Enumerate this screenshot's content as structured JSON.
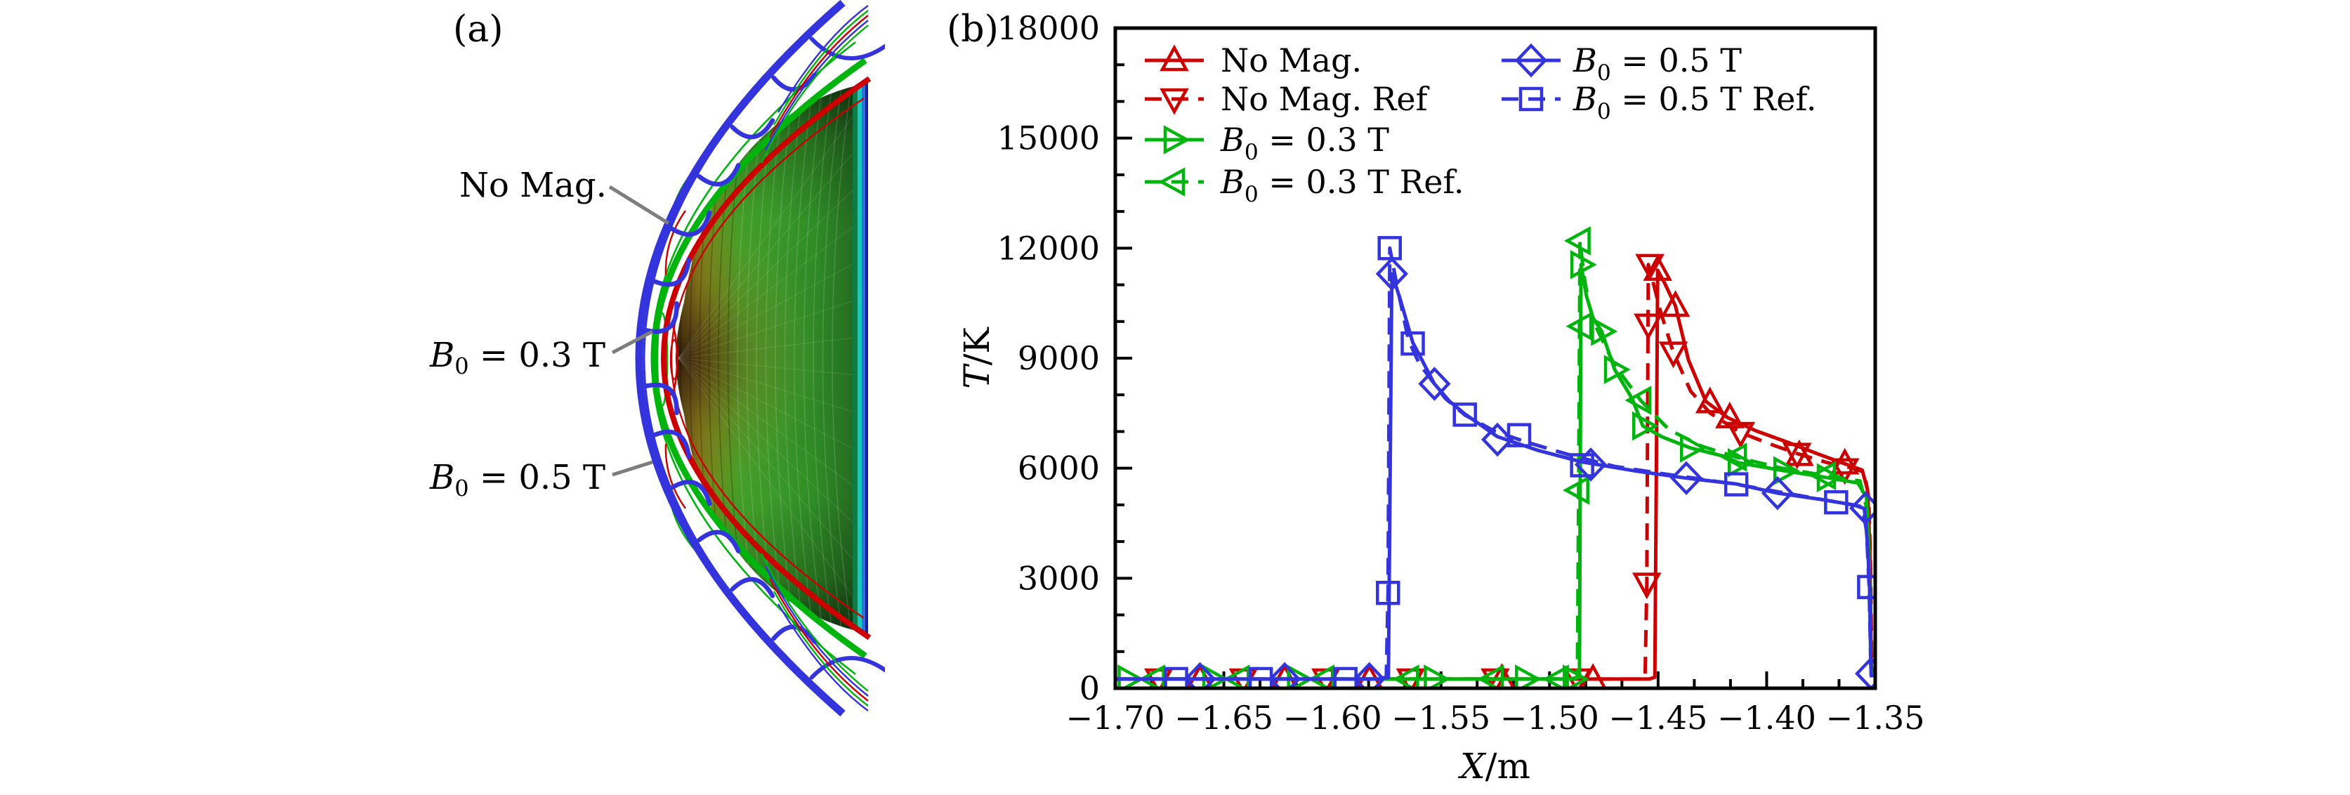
{
  "panel_a": {
    "label": "(a)",
    "annotations": [
      {
        "var": "",
        "sub": "",
        "rest": "No Mag.",
        "target": "red-shock-front"
      },
      {
        "var": "B",
        "sub": "0",
        "rest": " = 0.3 T",
        "target": "green-shock-front"
      },
      {
        "var": "B",
        "sub": "0",
        "rest": " = 0.5 T",
        "target": "blue-shock-front"
      }
    ],
    "colors": {
      "no_mag_shock": "#cc0000",
      "b03_shock": "#00b40e",
      "b05_shock": "#3434dd",
      "leader_line": "#7d7d7d",
      "body_nose": "#33230a",
      "body_mid": "#3a9a2a",
      "body_edge": "#1e6020",
      "base_teal": "#18c9c2",
      "base_blue": "#2f6fe0",
      "base_deep_blue": "#15249c"
    }
  },
  "panel_b": {
    "label": "(b)",
    "x_axis": {
      "label_var": "X",
      "label_rest": "/m",
      "tick_labels": [
        "−1.70",
        "−1.65",
        "−1.60",
        "−1.55",
        "−1.50",
        "−1.45",
        "−1.40",
        "−1.35"
      ]
    },
    "y_axis": {
      "label_var": "T",
      "label_rest": "/K",
      "tick_labels": [
        "0",
        "3000",
        "6000",
        "9000",
        "12000",
        "15000",
        "18000"
      ]
    },
    "legend": {
      "columns": [
        [
          {
            "var": "",
            "sub": "",
            "rest": "No Mag.",
            "color": "#cc0000",
            "dashed": false,
            "marker": "triangle-up"
          },
          {
            "var": "",
            "sub": "",
            "rest": "No Mag. Ref",
            "color": "#cc0000",
            "dashed": true,
            "marker": "triangle-down"
          },
          {
            "var": "B",
            "sub": "0",
            "rest": " = 0.3 T",
            "color": "#00b40e",
            "dashed": false,
            "marker": "triangle-right"
          },
          {
            "var": "B",
            "sub": "0",
            "rest": " = 0.3 T Ref.",
            "color": "#00b40e",
            "dashed": true,
            "marker": "triangle-left"
          }
        ],
        [
          {
            "var": "B",
            "sub": "0",
            "rest": " = 0.5 T",
            "color": "#3434dd",
            "dashed": false,
            "marker": "diamond"
          },
          {
            "var": "B",
            "sub": "0",
            "rest": " = 0.5 T Ref.",
            "color": "#3434dd",
            "dashed": true,
            "marker": "square"
          }
        ]
      ]
    }
  },
  "chart_data": {
    "type": "line",
    "title": "",
    "xlabel": "X/m",
    "ylabel": "T/K",
    "xlim": [
      -1.7,
      -1.35
    ],
    "ylim": [
      0,
      18000
    ],
    "x_major_step": 0.05,
    "x_minor_divisions": 3,
    "y_major_step": 3000,
    "y_minor_divisions": 3,
    "grid": false,
    "legend_position": "upper-left-inside",
    "series": [
      {
        "name": "No Mag. Ref",
        "color": "#cc0000",
        "style": "dashed",
        "marker": "triangle-down",
        "points": [
          [
            -1.7,
            250
          ],
          [
            -1.6,
            250
          ],
          [
            -1.5,
            250
          ],
          [
            -1.458,
            250
          ],
          [
            -1.456,
            300
          ],
          [
            -1.4552,
            2860
          ],
          [
            -1.4545,
            11550
          ],
          [
            -1.452,
            11000
          ],
          [
            -1.449,
            10300
          ],
          [
            -1.443,
            9160
          ],
          [
            -1.435,
            8100
          ],
          [
            -1.426,
            7500
          ],
          [
            -1.412,
            6970
          ],
          [
            -1.398,
            6650
          ],
          [
            -1.386,
            6400
          ],
          [
            -1.372,
            6150
          ],
          [
            -1.362,
            6020
          ],
          [
            -1.355,
            5900
          ],
          [
            -1.353,
            5200
          ],
          [
            -1.3522,
            3500
          ],
          [
            -1.3516,
            600
          ],
          [
            -1.3514,
            300
          ]
        ],
        "marker_points": [
          [
            -1.68,
            250
          ],
          [
            -1.641,
            250
          ],
          [
            -1.603,
            250
          ],
          [
            -1.564,
            250
          ],
          [
            -1.525,
            250
          ],
          [
            -1.487,
            250
          ],
          [
            -1.4552,
            2860
          ],
          [
            -1.4545,
            9925
          ],
          [
            -1.4538,
            11550
          ],
          [
            -1.443,
            9160
          ],
          [
            -1.412,
            6970
          ],
          [
            -1.386,
            6400
          ],
          [
            -1.364,
            5980
          ]
        ]
      },
      {
        "name": "No Mag.",
        "color": "#cc0000",
        "style": "solid",
        "marker": "triangle-up",
        "points": [
          [
            -1.7,
            250
          ],
          [
            -1.6,
            250
          ],
          [
            -1.5,
            250
          ],
          [
            -1.454,
            250
          ],
          [
            -1.4515,
            300
          ],
          [
            -1.4508,
            6000
          ],
          [
            -1.4502,
            11400
          ],
          [
            -1.447,
            11050
          ],
          [
            -1.442,
            10420
          ],
          [
            -1.436,
            8950
          ],
          [
            -1.428,
            7820
          ],
          [
            -1.418,
            7380
          ],
          [
            -1.405,
            7020
          ],
          [
            -1.39,
            6700
          ],
          [
            -1.376,
            6380
          ],
          [
            -1.364,
            6120
          ],
          [
            -1.356,
            5950
          ],
          [
            -1.3535,
            5400
          ],
          [
            -1.3525,
            3800
          ],
          [
            -1.3518,
            700
          ],
          [
            -1.3515,
            300
          ]
        ],
        "marker_points": [
          [
            -1.661,
            250
          ],
          [
            -1.622,
            250
          ],
          [
            -1.583,
            250
          ],
          [
            -1.522,
            250
          ],
          [
            -1.48,
            250
          ],
          [
            -1.4502,
            11400
          ],
          [
            -1.442,
            10420
          ],
          [
            -1.4261,
            7790
          ],
          [
            -1.417,
            7380
          ],
          [
            -1.385,
            6350
          ],
          [
            -1.364,
            6120
          ]
        ]
      },
      {
        "name": "B0 = 0.3 T Ref.",
        "color": "#00b40e",
        "style": "dashed",
        "marker": "triangle-left",
        "points": [
          [
            -1.7,
            250
          ],
          [
            -1.6,
            250
          ],
          [
            -1.49,
            250
          ],
          [
            -1.4872,
            300
          ],
          [
            -1.4866,
            5400
          ],
          [
            -1.486,
            12200
          ],
          [
            -1.484,
            11200
          ],
          [
            -1.482,
            10500
          ],
          [
            -1.479,
            9900
          ],
          [
            -1.47,
            8800
          ],
          [
            -1.458,
            7850
          ],
          [
            -1.445,
            7050
          ],
          [
            -1.43,
            6600
          ],
          [
            -1.414,
            6300
          ],
          [
            -1.393,
            6000
          ],
          [
            -1.373,
            5800
          ],
          [
            -1.357,
            5650
          ],
          [
            -1.3535,
            4800
          ],
          [
            -1.3525,
            2700
          ],
          [
            -1.3518,
            500
          ],
          [
            -1.3515,
            300
          ]
        ],
        "marker_points": [
          [
            -1.682,
            250
          ],
          [
            -1.643,
            250
          ],
          [
            -1.604,
            250
          ],
          [
            -1.565,
            250
          ],
          [
            -1.526,
            250
          ],
          [
            -1.496,
            250
          ],
          [
            -1.4866,
            5400
          ],
          [
            -1.486,
            12200
          ],
          [
            -1.4852,
            9870
          ],
          [
            -1.458,
            7850
          ],
          [
            -1.414,
            6300
          ],
          [
            -1.373,
            5800
          ]
        ]
      },
      {
        "name": "B0 = 0.3 T",
        "color": "#00b40e",
        "style": "solid",
        "marker": "triangle-right",
        "points": [
          [
            -1.7,
            250
          ],
          [
            -1.6,
            250
          ],
          [
            -1.489,
            250
          ],
          [
            -1.4862,
            300
          ],
          [
            -1.4855,
            11550
          ],
          [
            -1.483,
            10700
          ],
          [
            -1.48,
            10100
          ],
          [
            -1.476,
            9730
          ],
          [
            -1.47,
            8690
          ],
          [
            -1.462,
            7900
          ],
          [
            -1.457,
            7150
          ],
          [
            -1.448,
            6850
          ],
          [
            -1.435,
            6550
          ],
          [
            -1.42,
            6330
          ],
          [
            -1.413,
            6150
          ],
          [
            -1.392,
            5930
          ],
          [
            -1.372,
            5740
          ],
          [
            -1.358,
            5600
          ],
          [
            -1.354,
            5200
          ],
          [
            -1.3528,
            3500
          ],
          [
            -1.352,
            600
          ],
          [
            -1.3517,
            300
          ]
        ],
        "marker_points": [
          [
            -1.694,
            250
          ],
          [
            -1.655,
            250
          ],
          [
            -1.616,
            250
          ],
          [
            -1.553,
            250
          ],
          [
            -1.511,
            250
          ],
          [
            -1.489,
            250
          ],
          [
            -1.4855,
            11550
          ],
          [
            -1.476,
            9730
          ],
          [
            -1.47,
            8690
          ],
          [
            -1.457,
            7150
          ],
          [
            -1.435,
            6550
          ],
          [
            -1.413,
            6150
          ],
          [
            -1.392,
            5930
          ],
          [
            -1.372,
            5740
          ]
        ]
      },
      {
        "name": "B0 = 0.5 T Ref.",
        "color": "#3434dd",
        "style": "dashed",
        "marker": "square",
        "points": [
          [
            -1.7,
            250
          ],
          [
            -1.65,
            250
          ],
          [
            -1.58,
            250
          ],
          [
            -1.5752,
            300
          ],
          [
            -1.5744,
            2600
          ],
          [
            -1.5736,
            12000
          ],
          [
            -1.57,
            10900
          ],
          [
            -1.565,
            9500
          ],
          [
            -1.56,
            8850
          ],
          [
            -1.548,
            7900
          ],
          [
            -1.539,
            7450
          ],
          [
            -1.525,
            7000
          ],
          [
            -1.51,
            6700
          ],
          [
            -1.49,
            6350
          ],
          [
            -1.47,
            6050
          ],
          [
            -1.45,
            5870
          ],
          [
            -1.43,
            5700
          ],
          [
            -1.414,
            5560
          ],
          [
            -1.395,
            5360
          ],
          [
            -1.37,
            5100
          ],
          [
            -1.356,
            4950
          ],
          [
            -1.354,
            4300
          ],
          [
            -1.3528,
            2760
          ],
          [
            -1.352,
            500
          ],
          [
            -1.3517,
            300
          ]
        ],
        "marker_points": [
          [
            -1.672,
            250
          ],
          [
            -1.633,
            250
          ],
          [
            -1.594,
            250
          ],
          [
            -1.5744,
            2600
          ],
          [
            -1.5736,
            12000
          ],
          [
            -1.563,
            9400
          ],
          [
            -1.539,
            7460
          ],
          [
            -1.514,
            6900
          ],
          [
            -1.485,
            6080
          ],
          [
            -1.414,
            5560
          ],
          [
            -1.368,
            5070
          ],
          [
            -1.3528,
            2760
          ]
        ]
      },
      {
        "name": "B0 = 0.5 T",
        "color": "#3434dd",
        "style": "solid",
        "marker": "diamond",
        "points": [
          [
            -1.7,
            250
          ],
          [
            -1.65,
            250
          ],
          [
            -1.579,
            250
          ],
          [
            -1.5742,
            300
          ],
          [
            -1.5734,
            6000
          ],
          [
            -1.5726,
            11300
          ],
          [
            -1.569,
            10650
          ],
          [
            -1.563,
            9430
          ],
          [
            -1.553,
            8300
          ],
          [
            -1.546,
            7820
          ],
          [
            -1.539,
            7480
          ],
          [
            -1.524,
            6860
          ],
          [
            -1.505,
            6480
          ],
          [
            -1.485,
            6170
          ],
          [
            -1.46,
            5920
          ],
          [
            -1.437,
            5730
          ],
          [
            -1.414,
            5570
          ],
          [
            -1.395,
            5320
          ],
          [
            -1.375,
            5150
          ],
          [
            -1.36,
            5000
          ],
          [
            -1.355,
            4900
          ],
          [
            -1.3535,
            3900
          ],
          [
            -1.3526,
            2700
          ],
          [
            -1.3519,
            400
          ],
          [
            -1.3516,
            300
          ]
        ],
        "marker_points": [
          [
            -1.661,
            250
          ],
          [
            -1.622,
            250
          ],
          [
            -1.583,
            250
          ],
          [
            -1.5726,
            11300
          ],
          [
            -1.553,
            8300
          ],
          [
            -1.524,
            6780
          ],
          [
            -1.481,
            6100
          ],
          [
            -1.437,
            5730
          ],
          [
            -1.395,
            5320
          ],
          [
            -1.3545,
            4910
          ],
          [
            -1.3519,
            400
          ]
        ]
      }
    ]
  }
}
